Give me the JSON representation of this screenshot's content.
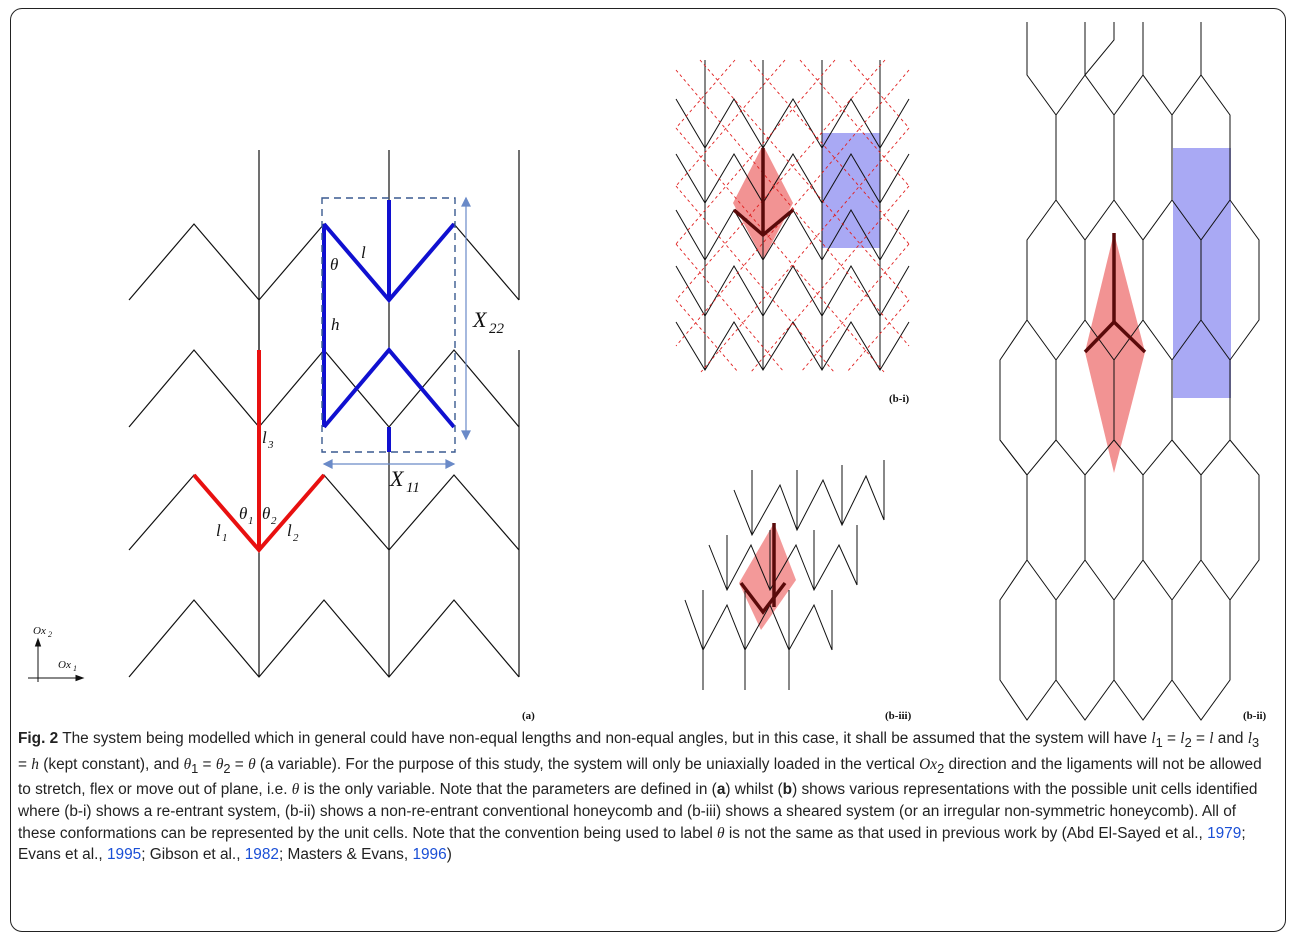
{
  "figure": {
    "labels": {
      "l": "l",
      "theta": "θ",
      "h": "h",
      "X22": "X",
      "X22_sub": "22",
      "X11": "X",
      "X11_sub": "11",
      "l3": "l",
      "l3_sub": "3",
      "l1": "l",
      "l1_sub": "1",
      "l2": "l",
      "l2_sub": "2",
      "theta1": "θ",
      "theta1_sub": "1",
      "theta2": "θ",
      "theta2_sub": "2",
      "ox2": "Ox",
      "ox2_sub": "2",
      "ox1": "Ox",
      "ox1_sub": "1"
    },
    "panel_tags": {
      "a": "(a)",
      "b_i": "(b-i)",
      "b_ii": "(b-ii)",
      "b_iii": "(b-iii)"
    },
    "colors": {
      "highlight_blue": "#1010d0",
      "highlight_red": "#e81010",
      "unit_cell_red_fill": "#f08080",
      "unit_cell_blue_fill": "#8c8cf0",
      "dashed_red": "#e02020",
      "dashed_box": "#3a5a90",
      "link": "#1a4fd6"
    }
  },
  "caption": {
    "fig_label": "Fig. 2",
    "p1": " The system being modelled which in general could have non-equal lengths and non-equal angles, but in this case, it shall be assumed that the system will have ",
    "eq1": "l",
    "p2": " = ",
    "p3": " = ",
    "p4": " and ",
    "p5": " = ",
    "p6": " (kept constant), and ",
    "p7": " = ",
    "p8": " = ",
    "p9": " (a variable). For the purpose of this study, the system will only be uniaxially loaded in the vertical ",
    "ox": "Ox",
    "p10": " direction and the ligaments will not be allowed to stretch, flex or move out of plane, i.e. ",
    "p11": " is the only variable. Note that the parameters are defined in (",
    "bold_a": "a",
    "p12": ") whilst (",
    "bold_b": "b",
    "p13": ") shows various representations with the possible unit cells identified where (b-i) shows a re-entrant system, (b-ii) shows a non-re-entrant conventional honeycomb and (b-iii) shows a sheared system (or an irregular non-symmetric honeycomb). All of these conformations can be represented by the unit cells. Note that the convention being used to label ",
    "p14": " is not the same as that used in previous work by (Abd El-Sayed et al., ",
    "ref1": "1979",
    "p15": "; Evans et al., ",
    "ref2": "1995",
    "p16": "; Gibson et al., ",
    "ref3": "1982",
    "p17": "; Masters & Evans, ",
    "ref4": "1996",
    "p18": ")",
    "sym_l": "l",
    "sym_h": "h",
    "sym_theta": "θ",
    "sub1": "1",
    "sub2": "2",
    "sub3": "3"
  }
}
